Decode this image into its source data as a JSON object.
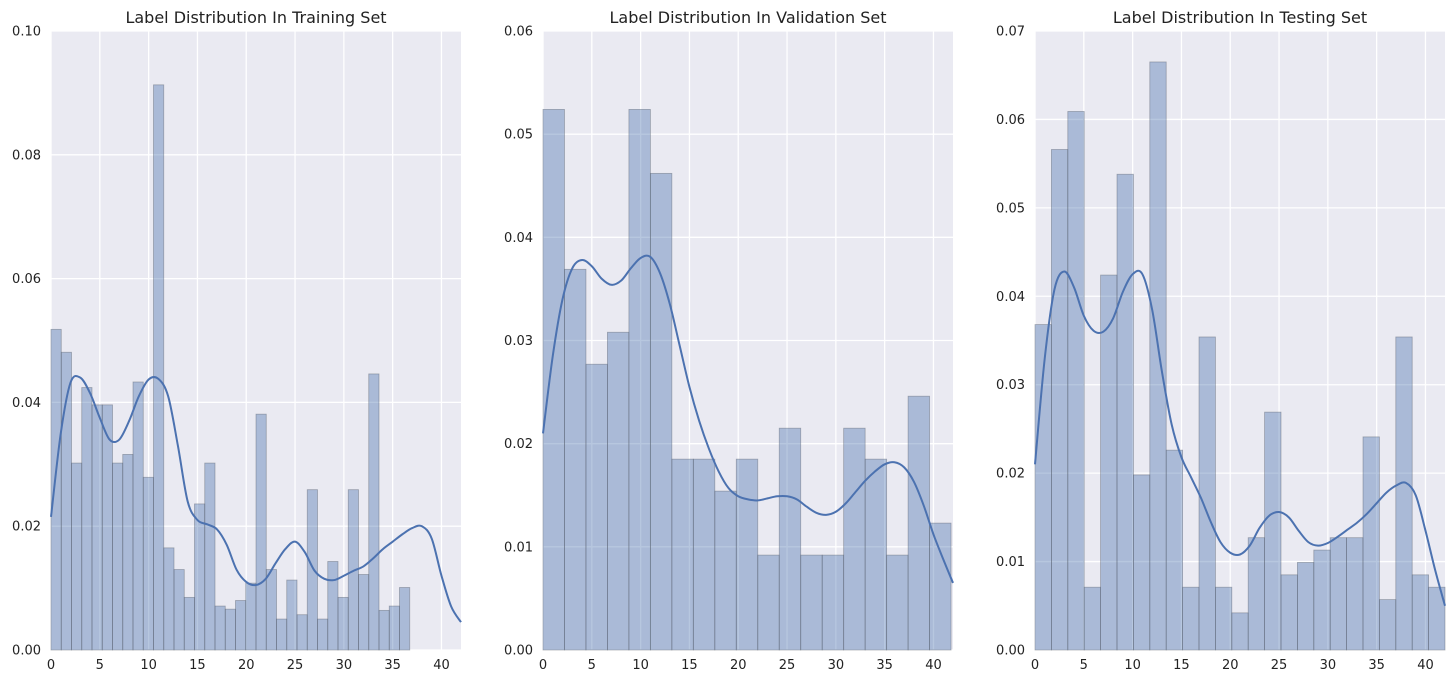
{
  "colors": {
    "background": "#eaeaf2",
    "grid": "#ffffff",
    "bar_fill": "#4c72b0",
    "bar_fill_opacity": 0.4,
    "kde_line": "#4c72b0"
  },
  "chart_data": [
    {
      "type": "bar",
      "title": "Label Distribution In Training Set",
      "xlim": [
        0,
        42
      ],
      "ylim": [
        0,
        0.1
      ],
      "grid": true,
      "xticks": [
        "0",
        "5",
        "10",
        "15",
        "20",
        "25",
        "30",
        "35",
        "40"
      ],
      "yticks": [
        "0.00",
        "0.02",
        "0.04",
        "0.06",
        "0.08",
        "0.10"
      ],
      "bin_width": 1.05,
      "values": [
        0.0518,
        0.0481,
        0.0302,
        0.0424,
        0.0396,
        0.0396,
        0.0302,
        0.0316,
        0.0433,
        0.0279,
        0.0913,
        0.0165,
        0.013,
        0.0085,
        0.0236,
        0.0302,
        0.0071,
        0.0066,
        0.008,
        0.0108,
        0.0381,
        0.013,
        0.005,
        0.0113,
        0.0057,
        0.0259,
        0.005,
        0.0143,
        0.0085,
        0.0259,
        0.0122,
        0.0446,
        0.0064,
        0.0071,
        0.0101
      ],
      "kde": {
        "x": [
          0,
          1,
          2,
          3,
          4,
          5,
          6,
          7,
          8,
          9,
          10,
          11,
          12,
          13,
          14,
          15,
          16,
          17,
          18,
          19,
          20,
          21,
          22,
          23,
          24,
          25,
          26,
          27,
          28,
          29,
          30,
          31,
          32,
          33,
          34,
          35,
          36,
          37,
          38,
          39,
          40,
          41,
          42
        ],
        "y": [
          0.0215,
          0.035,
          0.0432,
          0.044,
          0.0415,
          0.0375,
          0.034,
          0.034,
          0.037,
          0.041,
          0.0437,
          0.0438,
          0.041,
          0.033,
          0.024,
          0.021,
          0.0203,
          0.0195,
          0.017,
          0.013,
          0.011,
          0.0105,
          0.0115,
          0.014,
          0.0163,
          0.0175,
          0.0158,
          0.0128,
          0.0115,
          0.0113,
          0.012,
          0.0128,
          0.0135,
          0.0148,
          0.0163,
          0.0175,
          0.0187,
          0.0197,
          0.02,
          0.018,
          0.012,
          0.007,
          0.0045
        ]
      }
    },
    {
      "type": "bar",
      "title": "Label Distribution In Validation Set",
      "xlim": [
        0,
        42
      ],
      "ylim": [
        0,
        0.06
      ],
      "grid": true,
      "xticks": [
        "0",
        "5",
        "10",
        "15",
        "20",
        "25",
        "30",
        "35",
        "40"
      ],
      "yticks": [
        "0.00",
        "0.01",
        "0.02",
        "0.03",
        "0.04",
        "0.05",
        "0.06"
      ],
      "bin_width": 2.2,
      "values": [
        0.0524,
        0.0369,
        0.0277,
        0.0308,
        0.0524,
        0.0462,
        0.0185,
        0.0185,
        0.0154,
        0.0185,
        0.0092,
        0.0215,
        0.0092,
        0.0092,
        0.0215,
        0.0185,
        0.0092,
        0.0246,
        0.0123
      ],
      "kde": {
        "x": [
          0,
          1,
          2,
          3,
          4,
          5,
          6,
          7,
          8,
          9,
          10,
          11,
          12,
          13,
          14,
          15,
          16,
          17,
          18,
          19,
          20,
          21,
          22,
          23,
          24,
          25,
          26,
          27,
          28,
          29,
          30,
          31,
          32,
          33,
          34,
          35,
          36,
          37,
          38,
          39,
          40,
          41,
          42
        ],
        "y": [
          0.021,
          0.0285,
          0.034,
          0.037,
          0.0378,
          0.0372,
          0.036,
          0.0354,
          0.0358,
          0.037,
          0.038,
          0.0381,
          0.0365,
          0.0335,
          0.0295,
          0.0255,
          0.0222,
          0.0195,
          0.0173,
          0.0157,
          0.0149,
          0.0146,
          0.0145,
          0.0147,
          0.0149,
          0.0149,
          0.0146,
          0.0139,
          0.0133,
          0.0131,
          0.0134,
          0.0142,
          0.0153,
          0.0164,
          0.0173,
          0.018,
          0.0182,
          0.0177,
          0.0163,
          0.014,
          0.0112,
          0.0088,
          0.0065
        ]
      }
    },
    {
      "type": "bar",
      "title": "Label Distribution In Testing Set",
      "xlim": [
        0,
        42
      ],
      "ylim": [
        0,
        0.07
      ],
      "grid": true,
      "xticks": [
        "0",
        "5",
        "10",
        "15",
        "20",
        "25",
        "30",
        "35",
        "40"
      ],
      "yticks": [
        "0.00",
        "0.01",
        "0.02",
        "0.03",
        "0.04",
        "0.05",
        "0.06",
        "0.07"
      ],
      "bin_width": 1.68,
      "values": [
        0.0368,
        0.0566,
        0.0609,
        0.0071,
        0.0424,
        0.0538,
        0.0198,
        0.0665,
        0.0226,
        0.0071,
        0.0354,
        0.0071,
        0.0042,
        0.0127,
        0.0269,
        0.0085,
        0.0099,
        0.0113,
        0.0127,
        0.0127,
        0.0241,
        0.0057,
        0.0354,
        0.0085,
        0.0071
      ],
      "kde": {
        "x": [
          0,
          1,
          2,
          3,
          4,
          5,
          6,
          7,
          8,
          9,
          10,
          11,
          12,
          13,
          14,
          15,
          16,
          17,
          18,
          19,
          20,
          21,
          22,
          23,
          24,
          25,
          26,
          27,
          28,
          29,
          30,
          31,
          32,
          33,
          34,
          35,
          36,
          37,
          38,
          39,
          40,
          41,
          42
        ],
        "y": [
          0.021,
          0.033,
          0.0408,
          0.0428,
          0.041,
          0.0378,
          0.0361,
          0.036,
          0.0375,
          0.0405,
          0.0425,
          0.0425,
          0.0385,
          0.0315,
          0.0255,
          0.0218,
          0.0195,
          0.0172,
          0.0145,
          0.0122,
          0.011,
          0.0108,
          0.0118,
          0.0138,
          0.0152,
          0.0156,
          0.015,
          0.0135,
          0.0122,
          0.0118,
          0.0121,
          0.0128,
          0.0136,
          0.0144,
          0.0154,
          0.0166,
          0.0178,
          0.0186,
          0.0189,
          0.0175,
          0.0135,
          0.009,
          0.005
        ]
      }
    }
  ]
}
